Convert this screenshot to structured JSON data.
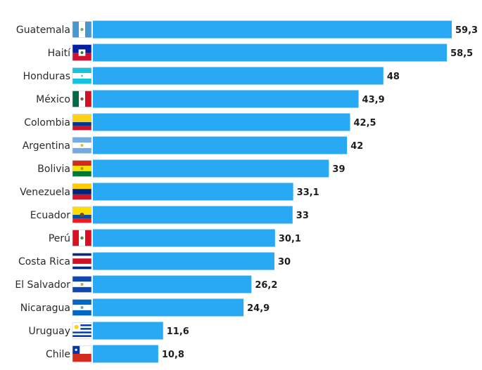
{
  "chart_data": {
    "type": "bar",
    "orientation": "horizontal",
    "title": "",
    "xlabel": "",
    "ylabel": "",
    "categories": [
      "Guatemala",
      "Haití",
      "Honduras",
      "México",
      "Colombia",
      "Argentina",
      "Bolivia",
      "Venezuela",
      "Ecuador",
      "Perú",
      "Costa Rica",
      "El Salvador",
      "Nicaragua",
      "Uruguay",
      "Chile"
    ],
    "value_labels": [
      "59,3",
      "58,5",
      "48",
      "43,9",
      "42,5",
      "42",
      "39",
      "33,1",
      "33",
      "30,1",
      "30",
      "26,2",
      "24,9",
      "11,6",
      "10,8"
    ],
    "values": [
      59.3,
      58.5,
      48,
      43.9,
      42.5,
      42,
      39,
      33.1,
      33,
      30.1,
      30,
      26.2,
      24.9,
      11.6,
      10.8
    ],
    "flags": [
      "flag-guatemala-icon",
      "flag-haiti-icon",
      "flag-honduras-icon",
      "flag-mexico-icon",
      "flag-colombia-icon",
      "flag-argentina-icon",
      "flag-bolivia-icon",
      "flag-venezuela-icon",
      "flag-ecuador-icon",
      "flag-peru-icon",
      "flag-costa-rica-icon",
      "flag-el-salvador-icon",
      "flag-nicaragua-icon",
      "flag-uruguay-icon",
      "flag-chile-icon"
    ],
    "bar_color": "#29a9f3",
    "xlim": [
      0,
      59.3
    ],
    "grid": false,
    "legend": "none"
  }
}
